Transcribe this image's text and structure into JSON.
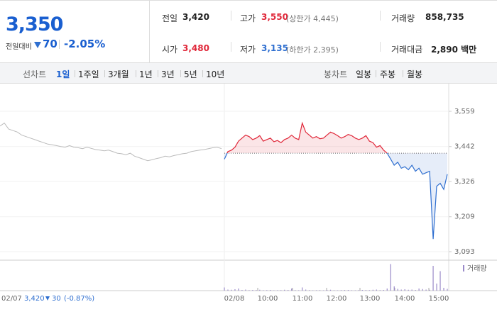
{
  "header": {
    "price": "3,350",
    "change_label": "전일대비",
    "change": "70",
    "change_pct": "-2.05%"
  },
  "stats": [
    {
      "label": "전일",
      "value": "3,420"
    },
    {
      "label": "고가",
      "value": "3,550",
      "note": "(상한가 4,445)"
    },
    {
      "label": "거래량",
      "value": "858,735"
    },
    {
      "label": "시가",
      "value": "3,480"
    },
    {
      "label": "저가",
      "value": "3,135",
      "note": "(하한가 2,395)"
    },
    {
      "label": "거래대금",
      "value": "2,890 백만"
    }
  ],
  "tabs": {
    "line_chart": {
      "label": "선차트",
      "periods": [
        "1일",
        "1주일",
        "3개월",
        "1년",
        "3년",
        "5년",
        "10년"
      ],
      "selected": 0
    },
    "candle_chart": {
      "label": "봉차트",
      "periods": [
        "일봉",
        "주봉",
        "월봉"
      ]
    }
  },
  "chart_data": {
    "type": "line",
    "ylim": [
      3070,
      3635
    ],
    "yticks": [
      {
        "value": 3559,
        "label": "3,559"
      },
      {
        "value": 3442,
        "label": "3,442"
      },
      {
        "value": 3326,
        "label": "3,326"
      },
      {
        "value": 3209,
        "label": "3,209"
      },
      {
        "value": 3093,
        "label": "3,093"
      }
    ],
    "baseline": 3420,
    "x_labels": [
      "02/08",
      "10:00",
      "11:00",
      "12:00",
      "13:00",
      "14:00",
      "15:00"
    ],
    "prev_day": {
      "color": "#bbbbbb",
      "values": [
        3510,
        3520,
        3500,
        3495,
        3490,
        3480,
        3475,
        3470,
        3465,
        3460,
        3455,
        3450,
        3448,
        3445,
        3442,
        3440,
        3445,
        3440,
        3438,
        3435,
        3440,
        3436,
        3432,
        3430,
        3428,
        3430,
        3425,
        3420,
        3418,
        3415,
        3420,
        3410,
        3405,
        3400,
        3395,
        3398,
        3402,
        3405,
        3410,
        3408,
        3412,
        3415,
        3418,
        3420,
        3425,
        3428,
        3430,
        3432,
        3435,
        3438,
        3440,
        3435
      ]
    },
    "today": {
      "up_color": "#e0283a",
      "down_color": "#2f6fd0",
      "values": [
        3400,
        3425,
        3430,
        3440,
        3460,
        3470,
        3480,
        3475,
        3465,
        3470,
        3478,
        3460,
        3465,
        3470,
        3458,
        3462,
        3455,
        3465,
        3470,
        3480,
        3470,
        3465,
        3520,
        3490,
        3480,
        3470,
        3475,
        3468,
        3470,
        3480,
        3490,
        3485,
        3478,
        3470,
        3475,
        3482,
        3478,
        3470,
        3465,
        3470,
        3478,
        3460,
        3455,
        3440,
        3445,
        3430,
        3420,
        3400,
        3380,
        3390,
        3370,
        3375,
        3365,
        3380,
        3360,
        3370,
        3350,
        3355,
        3360,
        3135,
        3310,
        3320,
        3300,
        3350
      ]
    },
    "volume": {
      "name": "거래량",
      "color": "#9a8ac9",
      "ylim": [
        0,
        80000
      ],
      "values": [
        9000,
        3000,
        2500,
        4000,
        6000,
        2000,
        3000,
        1500,
        2000,
        1800,
        2500,
        1200,
        1500,
        2000,
        1000,
        1200,
        1500,
        2500,
        2000,
        6000,
        1500,
        1200,
        9000,
        3000,
        1500,
        1000,
        1200,
        1500,
        1000,
        2000,
        2500,
        1200,
        1000,
        1500,
        1800,
        2000,
        1200,
        1000,
        1500,
        2000,
        1800,
        1500,
        2500,
        3000,
        1500,
        2000,
        6000,
        75000,
        12000,
        5000,
        3000,
        4000,
        2500,
        3000,
        2000,
        6000,
        4500,
        3000,
        2500,
        70000,
        20000,
        55000,
        8000,
        5000
      ]
    },
    "prev_day_info": {
      "date": "02/07",
      "close": "3,420",
      "change": "30",
      "change_pct": "(-0.87%)"
    }
  }
}
